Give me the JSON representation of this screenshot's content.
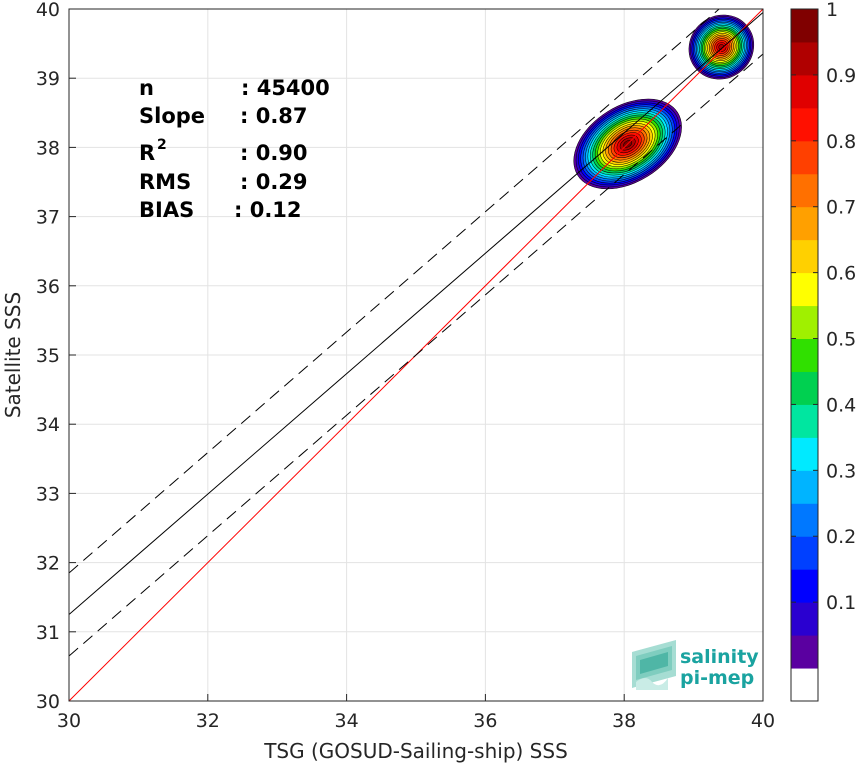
{
  "chart_data": {
    "type": "heatmap",
    "xlabel": "TSG (GOSUD-Sailing-ship) SSS",
    "ylabel": "Satellite SSS",
    "xlim": [
      30,
      40
    ],
    "ylim": [
      30,
      40
    ],
    "xticks": [
      "30",
      "32",
      "34",
      "36",
      "38",
      "40"
    ],
    "yticks": [
      "30",
      "31",
      "32",
      "33",
      "34",
      "35",
      "36",
      "37",
      "38",
      "39",
      "40"
    ],
    "grid": true,
    "stats": [
      {
        "label": "n",
        "value": ": 45400"
      },
      {
        "label": "Slope",
        "value": ": 0.87"
      },
      {
        "label": "R",
        "sup": "2",
        "value": ": 0.90"
      },
      {
        "label": "RMS",
        "value": ": 0.29"
      },
      {
        "label": "BIAS",
        "value": ": 0.12"
      }
    ],
    "lines": {
      "identity": {
        "slope": 1.0,
        "intercept": 0.0,
        "color": "#ff0000",
        "style": "solid"
      },
      "fit": {
        "slope": 0.87,
        "intercept": 5.15,
        "color": "#000000",
        "style": "solid"
      },
      "fit_upper": {
        "slope": 0.87,
        "intercept": 5.75,
        "color": "#000000",
        "style": "dashed"
      },
      "fit_lower": {
        "slope": 0.87,
        "intercept": 4.55,
        "color": "#000000",
        "style": "dashed"
      }
    },
    "density_clusters": [
      {
        "center_x": 38.05,
        "center_y": 38.05,
        "peak": 1.0,
        "spread_x": 0.85,
        "spread_y": 0.55,
        "angle_deg": 32
      },
      {
        "center_x": 39.4,
        "center_y": 39.45,
        "peak": 0.95,
        "spread_x": 0.48,
        "spread_y": 0.45,
        "angle_deg": 40
      }
    ],
    "colorbar": {
      "ticks": [
        "0.1",
        "0.2",
        "0.3",
        "0.4",
        "0.5",
        "0.6",
        "0.7",
        "0.8",
        "0.9",
        "1"
      ],
      "colors": [
        "#ffffff",
        "#5a00a0",
        "#2a00d0",
        "#0000ff",
        "#0040ff",
        "#0078ff",
        "#00b4ff",
        "#00eaff",
        "#00e6a0",
        "#00d050",
        "#30e000",
        "#a0f000",
        "#ffff00",
        "#ffd000",
        "#ffa000",
        "#ff7000",
        "#ff4000",
        "#ff1000",
        "#e00000",
        "#b00000",
        "#800000"
      ]
    }
  },
  "logo": {
    "line1": "salinity",
    "line2": "pi-mep"
  }
}
